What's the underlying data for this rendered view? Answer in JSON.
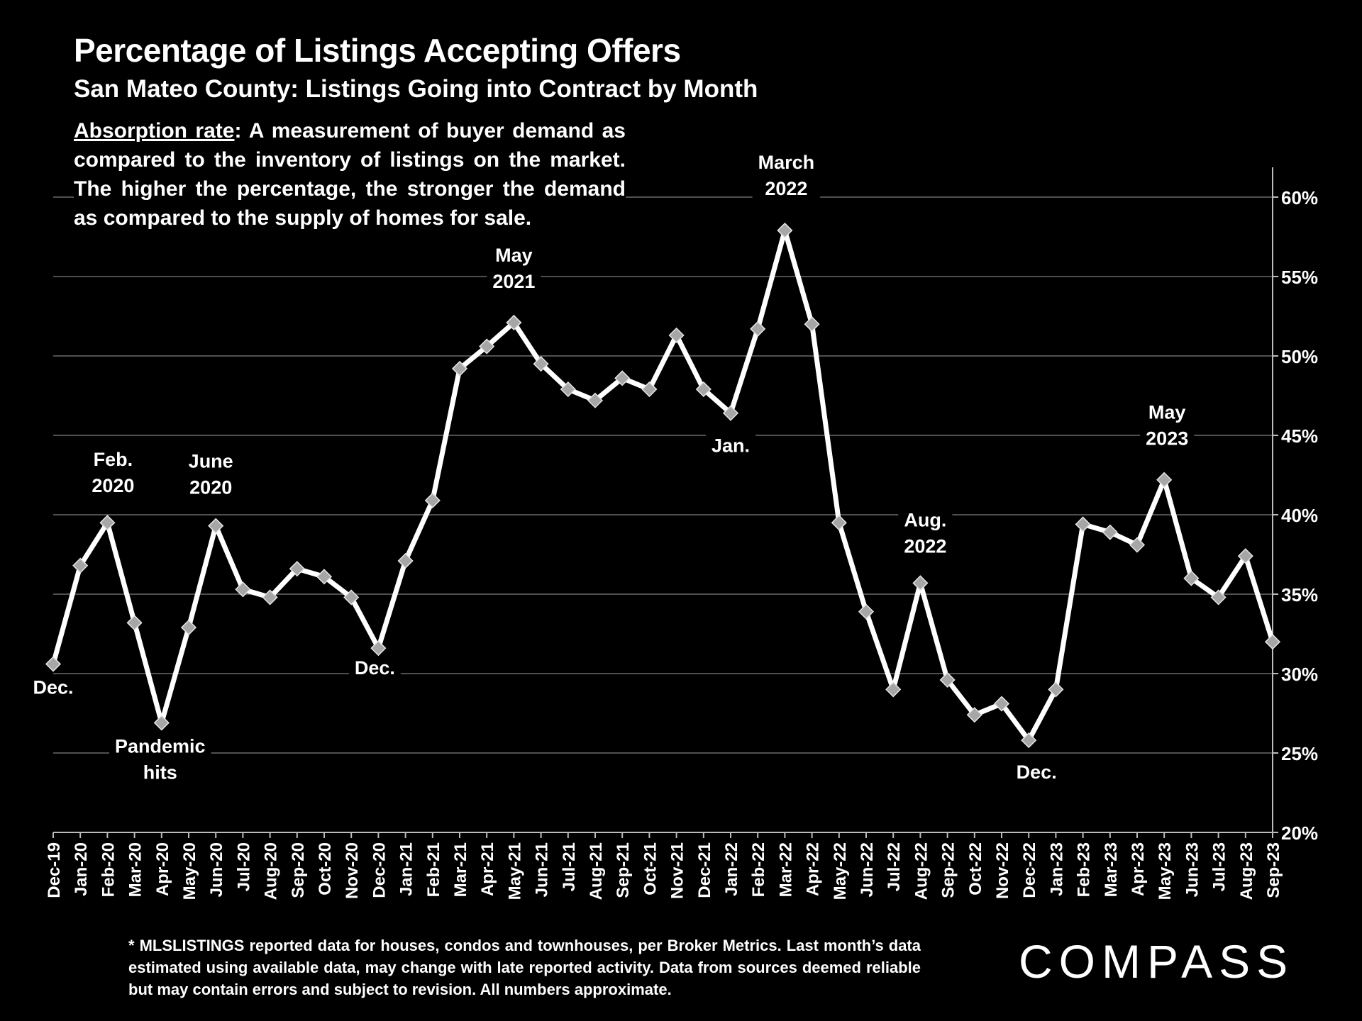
{
  "header": {
    "title": "Percentage of Listings Accepting Offers",
    "subtitle": "San Mateo County: Listings Going into Contract by Month"
  },
  "description": {
    "term": "Absorption rate",
    "text": ":  A measurement of buyer demand as compared to the inventory of listings on the market. The higher the percentage, the stronger the demand as compared to the supply of homes for sale."
  },
  "footnote": "* MLSLISTINGS reported data for houses, condos and townhouses, per Broker Metrics. Last month’s data estimated using available data, may change with late reported activity. Data from sources deemed reliable but may contain errors and subject to revision. All numbers approximate.",
  "brand": {
    "logo_text": "COMPASS"
  },
  "colors": {
    "background": "#000000",
    "line": "#ffffff",
    "marker": "#a6a6a6",
    "grid": "#6b6b6b"
  },
  "chart_data": {
    "type": "line",
    "title": "Percentage of Listings Accepting Offers",
    "xlabel": "",
    "ylabel": "",
    "ylim": [
      20,
      60
    ],
    "yticks": [
      20,
      25,
      30,
      35,
      40,
      45,
      50,
      55,
      60
    ],
    "ytick_labels": [
      "20%",
      "25%",
      "30%",
      "35%",
      "40%",
      "45%",
      "50%",
      "55%",
      "60%"
    ],
    "y_axis_side": "right",
    "grid": true,
    "categories": [
      "Dec-19",
      "Jan-20",
      "Feb-20",
      "Mar-20",
      "Apr-20",
      "May-20",
      "Jun-20",
      "Jul-20",
      "Aug-20",
      "Sep-20",
      "Oct-20",
      "Nov-20",
      "Dec-20",
      "Jan-21",
      "Feb-21",
      "Mar-21",
      "Apr-21",
      "May-21",
      "Jun-21",
      "Jul-21",
      "Aug-21",
      "Sep-21",
      "Oct-21",
      "Nov-21",
      "Dec-21",
      "Jan-22",
      "Feb-22",
      "Mar-22",
      "Apr-22",
      "May-22",
      "Jun-22",
      "Jul-22",
      "Aug-22",
      "Sep-22",
      "Oct-22",
      "Nov-22",
      "Dec-22",
      "Jan-23",
      "Feb-23",
      "Mar-23",
      "Apr-23",
      "May-23",
      "Jun-23",
      "Jul-23",
      "Aug-23",
      "Sep-23"
    ],
    "series": [
      {
        "name": "Listings Going into Contract",
        "values": [
          30.6,
          36.8,
          39.5,
          33.2,
          26.9,
          32.9,
          39.3,
          35.3,
          34.8,
          36.6,
          36.1,
          34.8,
          31.6,
          37.1,
          40.9,
          49.2,
          50.6,
          52.1,
          49.5,
          47.9,
          47.2,
          48.6,
          47.9,
          51.3,
          47.9,
          46.4,
          51.7,
          57.9,
          52.0,
          39.5,
          33.9,
          29.0,
          35.7,
          29.6,
          27.4,
          28.1,
          25.8,
          29.0,
          39.4,
          38.9,
          38.1,
          42.2,
          36.0,
          34.8,
          37.4,
          32.0
        ]
      }
    ],
    "annotations": [
      {
        "index": 0,
        "text": "Dec."
      },
      {
        "index": 2,
        "text": "Feb.\n2020"
      },
      {
        "index": 4,
        "text": "Pandemic\nhits"
      },
      {
        "index": 6,
        "text": "June\n2020"
      },
      {
        "index": 12,
        "text": "Dec."
      },
      {
        "index": 17,
        "text": "May\n2021"
      },
      {
        "index": 25,
        "text": "Jan."
      },
      {
        "index": 27,
        "text": "March\n2022"
      },
      {
        "index": 32,
        "text": "Aug.\n2022"
      },
      {
        "index": 36,
        "text": "Dec."
      },
      {
        "index": 41,
        "text": "May\n2023"
      }
    ]
  }
}
